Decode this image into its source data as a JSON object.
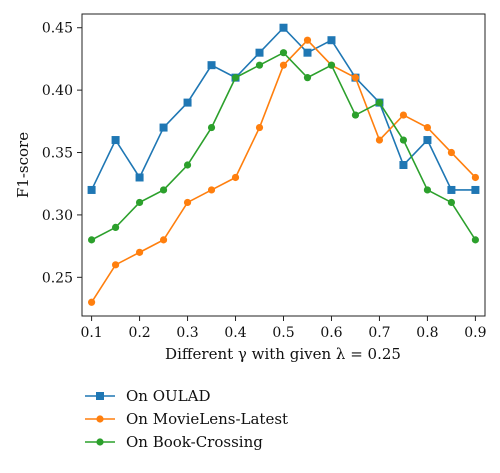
{
  "chart_data": {
    "type": "line",
    "xlabel": "Different γ with given λ = 0.25",
    "ylabel": "F1-score",
    "x": [
      0.1,
      0.15,
      0.2,
      0.25,
      0.3,
      0.35,
      0.4,
      0.45,
      0.5,
      0.55,
      0.6,
      0.65,
      0.7,
      0.75,
      0.8,
      0.85,
      0.9
    ],
    "x_ticks": [
      "0.1",
      "0.2",
      "0.3",
      "0.4",
      "0.5",
      "0.6",
      "0.7",
      "0.8",
      "0.9"
    ],
    "x_tick_values": [
      0.1,
      0.2,
      0.3,
      0.4,
      0.5,
      0.6,
      0.7,
      0.8,
      0.9
    ],
    "y_ticks": [
      "0.25",
      "0.30",
      "0.35",
      "0.40",
      "0.45"
    ],
    "y_tick_values": [
      0.25,
      0.3,
      0.35,
      0.4,
      0.45
    ],
    "xlim": [
      0.08,
      0.92
    ],
    "ylim": [
      0.219,
      0.461
    ],
    "grid": false,
    "legend_position": "below",
    "series": [
      {
        "name": "On OULAD",
        "color": "#1f77b4",
        "marker": "square",
        "values": [
          0.32,
          0.36,
          0.33,
          0.37,
          0.39,
          0.42,
          0.41,
          0.43,
          0.45,
          0.43,
          0.44,
          0.41,
          0.39,
          0.34,
          0.36,
          0.32,
          0.32
        ]
      },
      {
        "name": "On MovieLens-Latest",
        "color": "#ff7f0e",
        "marker": "circle",
        "values": [
          0.23,
          0.26,
          0.27,
          0.28,
          0.31,
          0.32,
          0.33,
          0.37,
          0.42,
          0.44,
          0.42,
          0.41,
          0.36,
          0.38,
          0.37,
          0.35,
          0.33
        ]
      },
      {
        "name": "On Book-Crossing",
        "color": "#2ca02c",
        "marker": "circle",
        "values": [
          0.28,
          0.29,
          0.31,
          0.32,
          0.34,
          0.37,
          0.41,
          0.42,
          0.43,
          0.41,
          0.42,
          0.38,
          0.39,
          0.36,
          0.32,
          0.31,
          0.28
        ]
      }
    ]
  }
}
